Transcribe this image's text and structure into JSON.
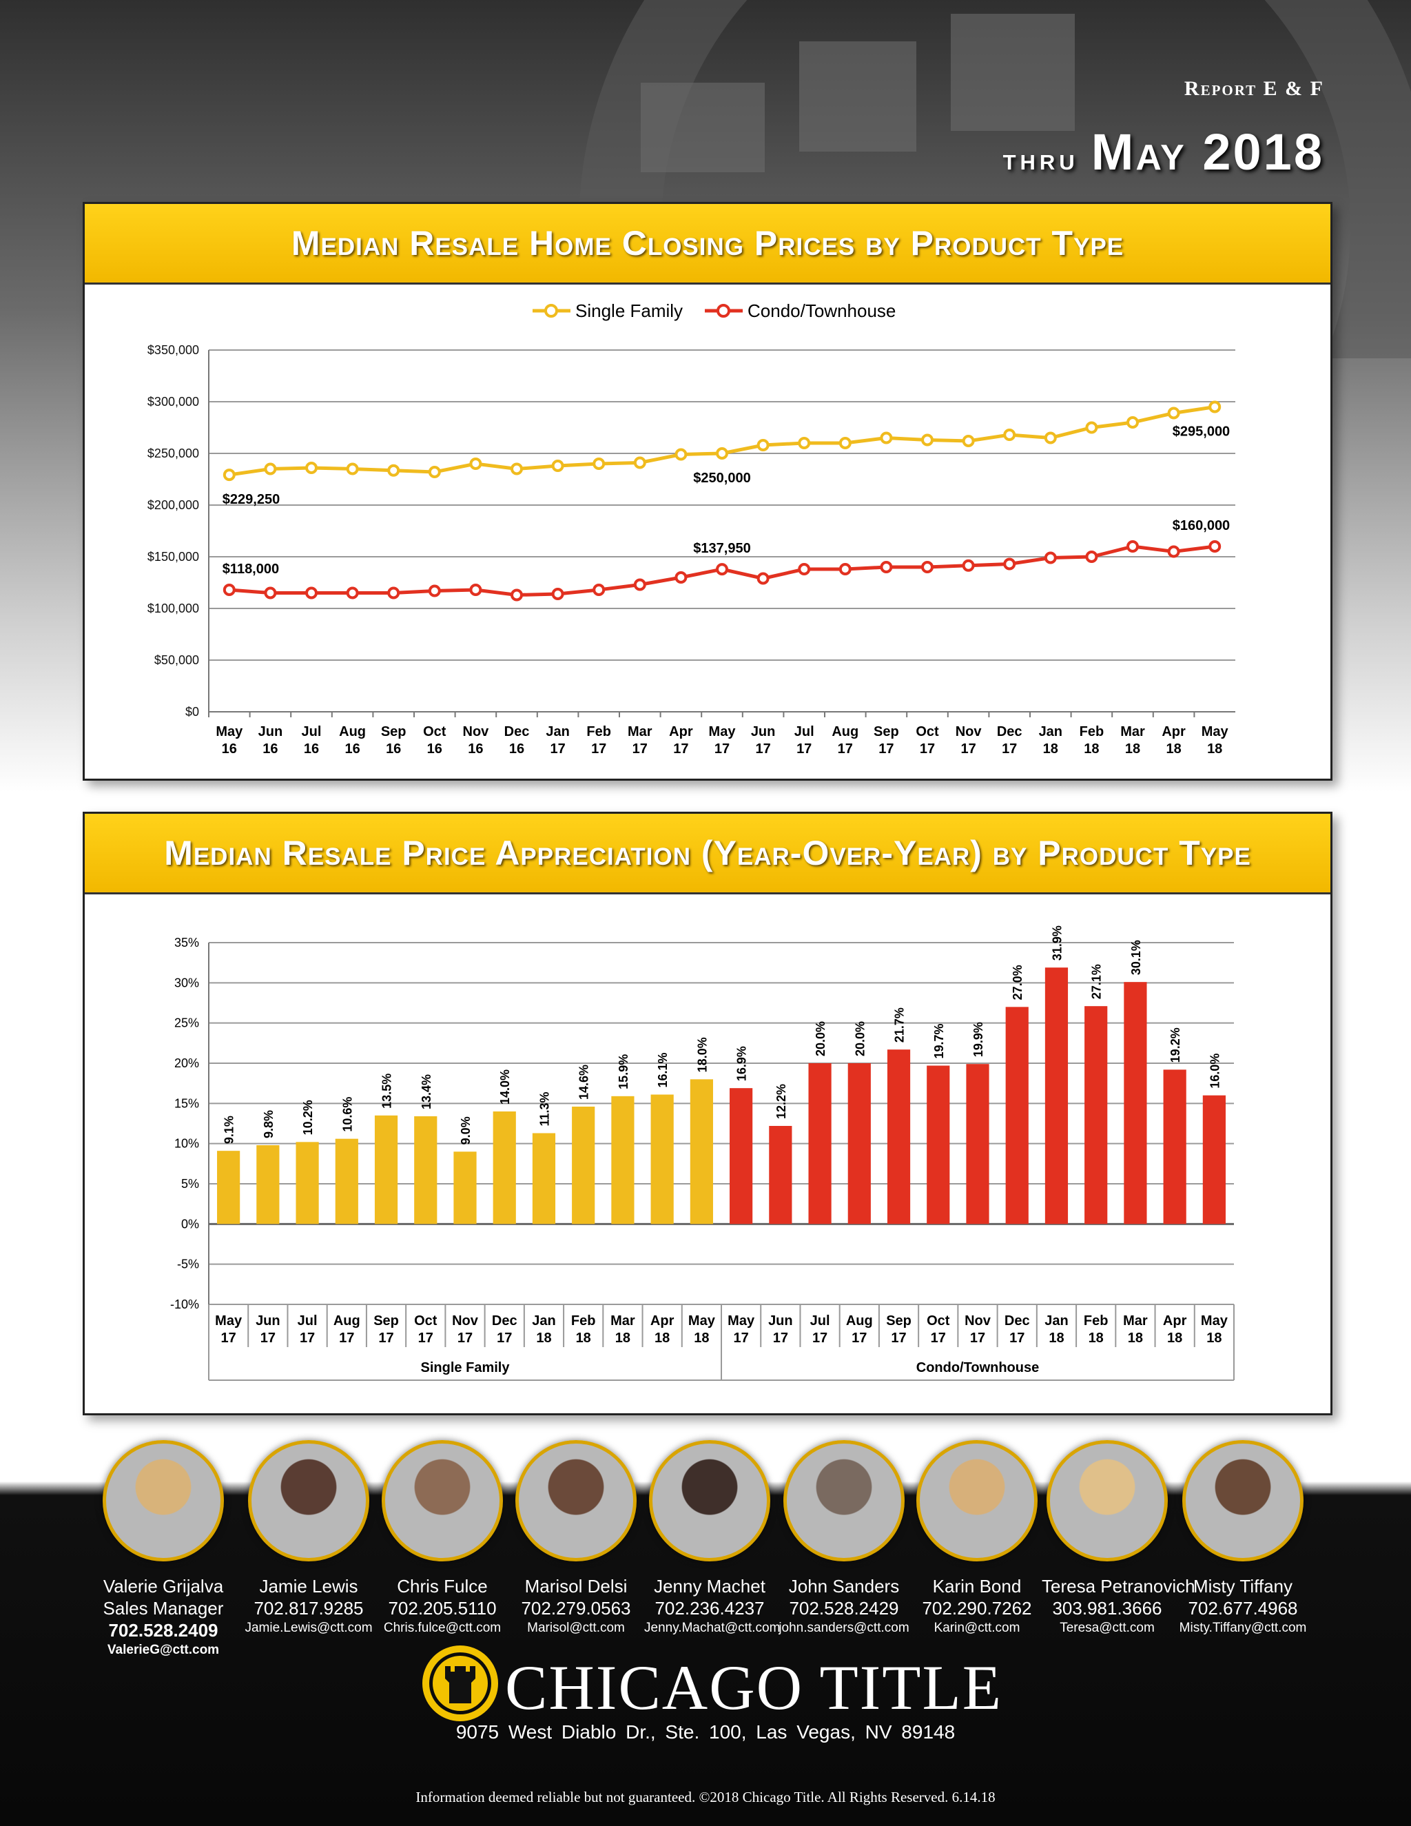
{
  "header": {
    "report_label": "Report E & F",
    "thru_word": "thru",
    "thru_date": "May 2018"
  },
  "colors": {
    "single_family": "#f0bb1e",
    "condo": "#e23120",
    "header_yellow": "#ffd21a"
  },
  "chart_data": [
    {
      "type": "line",
      "title": "Median Resale Home Closing Prices by Product Type",
      "legend_position": "top-center",
      "grid": true,
      "ylim": [
        0,
        350000
      ],
      "yticks": [
        "$0",
        "$50,000",
        "$100,000",
        "$150,000",
        "$200,000",
        "$250,000",
        "$300,000",
        "$350,000"
      ],
      "categories": [
        [
          "May",
          "16"
        ],
        [
          "Jun",
          "16"
        ],
        [
          "Jul",
          "16"
        ],
        [
          "Aug",
          "16"
        ],
        [
          "Sep",
          "16"
        ],
        [
          "Oct",
          "16"
        ],
        [
          "Nov",
          "16"
        ],
        [
          "Dec",
          "16"
        ],
        [
          "Jan",
          "17"
        ],
        [
          "Feb",
          "17"
        ],
        [
          "Mar",
          "17"
        ],
        [
          "Apr",
          "17"
        ],
        [
          "May",
          "17"
        ],
        [
          "Jun",
          "17"
        ],
        [
          "Jul",
          "17"
        ],
        [
          "Aug",
          "17"
        ],
        [
          "Sep",
          "17"
        ],
        [
          "Oct",
          "17"
        ],
        [
          "Nov",
          "17"
        ],
        [
          "Dec",
          "17"
        ],
        [
          "Jan",
          "18"
        ],
        [
          "Feb",
          "18"
        ],
        [
          "Mar",
          "18"
        ],
        [
          "Apr",
          "18"
        ],
        [
          "May",
          "18"
        ]
      ],
      "series": [
        {
          "name": "Single Family",
          "color": "#f0bb1e",
          "values": [
            229250,
            235000,
            236000,
            235000,
            233500,
            232000,
            240000,
            235000,
            238000,
            240000,
            241000,
            249000,
            250000,
            258000,
            260000,
            260000,
            265000,
            263000,
            262000,
            268000,
            265000,
            275000,
            280000,
            289000,
            295000
          ],
          "annotations": [
            {
              "index": 0,
              "label": "$229,250",
              "position": "below"
            },
            {
              "index": 12,
              "label": "$250,000",
              "position": "below"
            },
            {
              "index": 24,
              "label": "$295,000",
              "position": "below"
            }
          ]
        },
        {
          "name": "Condo/Townhouse",
          "color": "#e23120",
          "values": [
            118000,
            115000,
            115000,
            115000,
            115000,
            117000,
            118000,
            113000,
            114000,
            118000,
            123000,
            130000,
            137950,
            129000,
            138000,
            138000,
            140000,
            140000,
            141500,
            143000,
            149000,
            150000,
            160000,
            155000,
            160000
          ],
          "annotations": [
            {
              "index": 0,
              "label": "$118,000",
              "position": "above"
            },
            {
              "index": 12,
              "label": "$137,950",
              "position": "above"
            },
            {
              "index": 24,
              "label": "$160,000",
              "position": "above"
            }
          ]
        }
      ]
    },
    {
      "type": "bar",
      "title": "Median Resale Price Appreciation (Year-Over-Year) by Product Type",
      "grid": true,
      "ylim": [
        -10,
        35
      ],
      "yticks": [
        "-10%",
        "-5%",
        "0%",
        "5%",
        "10%",
        "15%",
        "20%",
        "25%",
        "30%",
        "35%"
      ],
      "categories": [
        [
          "May",
          "17"
        ],
        [
          "Jun",
          "17"
        ],
        [
          "Jul",
          "17"
        ],
        [
          "Aug",
          "17"
        ],
        [
          "Sep",
          "17"
        ],
        [
          "Oct",
          "17"
        ],
        [
          "Nov",
          "17"
        ],
        [
          "Dec",
          "17"
        ],
        [
          "Jan",
          "18"
        ],
        [
          "Feb",
          "18"
        ],
        [
          "Mar",
          "18"
        ],
        [
          "Apr",
          "18"
        ],
        [
          "May",
          "18"
        ]
      ],
      "series": [
        {
          "name": "Single Family",
          "color": "#f0bb1e",
          "values": [
            9.1,
            9.8,
            10.2,
            10.6,
            13.5,
            13.4,
            9.0,
            14.0,
            11.3,
            14.6,
            15.9,
            16.1,
            18.0
          ],
          "labels": [
            "9.1%",
            "9.8%",
            "10.2%",
            "10.6%",
            "13.5%",
            "13.4%",
            "9.0%",
            "14.0%",
            "11.3%",
            "14.6%",
            "15.9%",
            "16.1%",
            "18.0%"
          ]
        },
        {
          "name": "Condo/Townhouse",
          "color": "#e23120",
          "values": [
            16.9,
            12.2,
            20.0,
            20.0,
            21.7,
            19.7,
            19.9,
            27.0,
            31.9,
            27.1,
            30.1,
            19.2,
            16.0
          ],
          "labels": [
            "16.9%",
            "12.2%",
            "20.0%",
            "20.0%",
            "21.7%",
            "19.7%",
            "19.9%",
            "27.0%",
            "31.9%",
            "27.1%",
            "30.1%",
            "19.2%",
            "16.0%"
          ]
        }
      ]
    }
  ],
  "team": [
    {
      "name": "Valerie Grijalva",
      "title": "Sales Manager",
      "phone": "702.528.2409",
      "email": "ValerieG@ctt.com",
      "bold_contact": true
    },
    {
      "name": "Jamie Lewis",
      "title": "",
      "phone": "702.817.9285",
      "email": "Jamie.Lewis@ctt.com",
      "bold_contact": false
    },
    {
      "name": "Chris Fulce",
      "title": "",
      "phone": "702.205.5110",
      "email": "Chris.fulce@ctt.com",
      "bold_contact": false
    },
    {
      "name": "Marisol Delsi",
      "title": "",
      "phone": "702.279.0563",
      "email": "Marisol@ctt.com",
      "bold_contact": false
    },
    {
      "name": "Jenny Machet",
      "title": "",
      "phone": "702.236.4237",
      "email": "Jenny.Machat@ctt.com",
      "bold_contact": false
    },
    {
      "name": "John Sanders",
      "title": "",
      "phone": "702.528.2429",
      "email": "john.sanders@ctt.com",
      "bold_contact": false
    },
    {
      "name": "Karin Bond",
      "title": "",
      "phone": "702.290.7262",
      "email": "Karin@ctt.com",
      "bold_contact": false
    },
    {
      "name": "Teresa Petranovich",
      "title": "",
      "phone": "303.981.3666",
      "email": "Teresa@ctt.com",
      "bold_contact": false
    },
    {
      "name": "Misty Tiffany",
      "title": "",
      "phone": "702.677.4968",
      "email": "Misty.Tiffany@ctt.com",
      "bold_contact": false
    }
  ],
  "footer": {
    "logo_text": "CHICAGO TITLE",
    "logo_icon": "castle-tower-icon",
    "address": "9075 West Diablo Dr., Ste. 100, Las Vegas, NV 89148",
    "disclaimer": "Information deemed reliable but not guaranteed. ©2018 Chicago Title. All Rights Reserved. 6.14.18"
  }
}
